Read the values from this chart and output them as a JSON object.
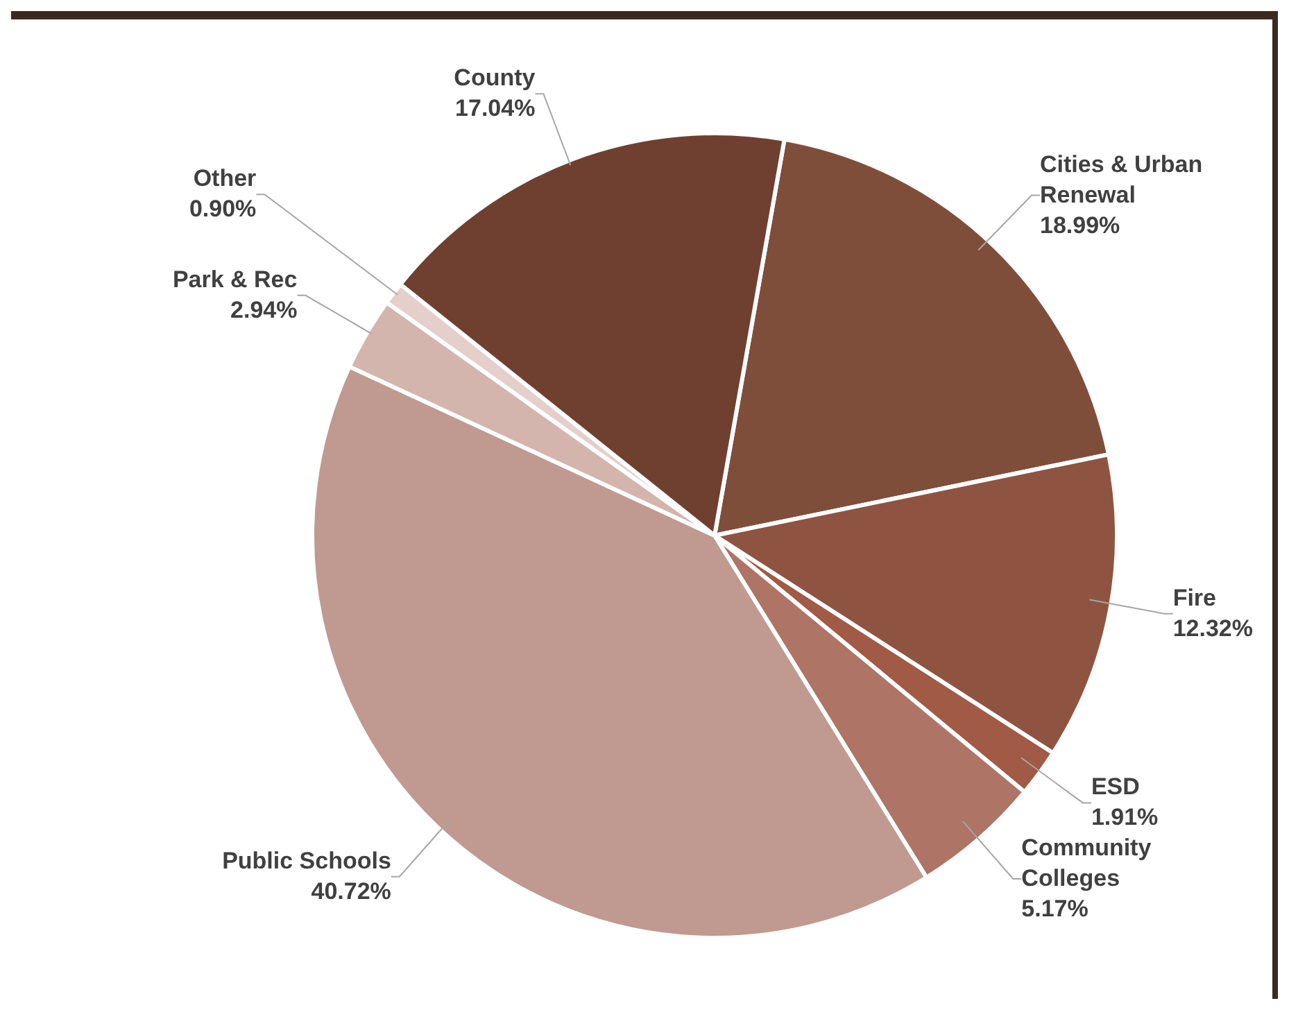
{
  "chart_data": {
    "type": "pie",
    "categories": [
      "Cities & Urban Renewal",
      "Fire",
      "ESD",
      "Community Colleges",
      "Public Schools",
      "Park & Rec",
      "Other",
      "County"
    ],
    "values": [
      18.99,
      12.32,
      1.91,
      5.17,
      40.72,
      2.94,
      0.9,
      17.04
    ],
    "value_labels": [
      "18.99%",
      "12.32%",
      "1.91%",
      "5.17%",
      "40.72%",
      "2.94%",
      "0.90%",
      "17.04%"
    ],
    "colors": [
      "#7f4e3b",
      "#8f5441",
      "#a05a45",
      "#ae7465",
      "#c09a90",
      "#d4b5ae",
      "#e5cfcb",
      "#6f4030"
    ]
  }
}
